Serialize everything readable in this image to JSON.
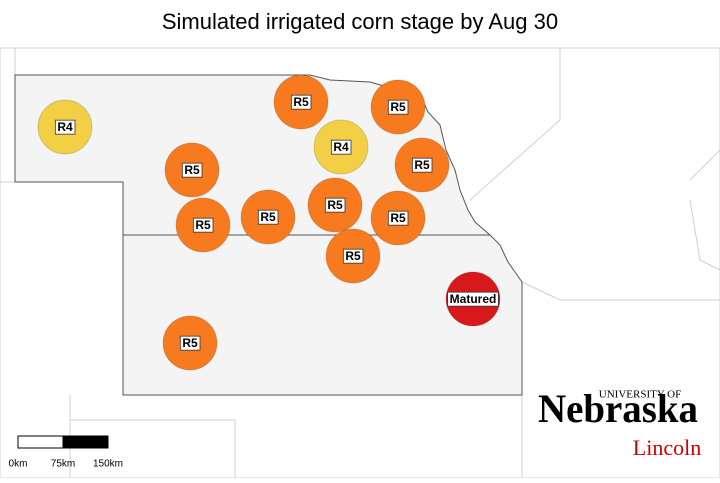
{
  "title": "Simulated irrigated corn stage by Aug 30",
  "markers": [
    {
      "label": "R4",
      "color": "#f2cf45"
    },
    {
      "label": "R5",
      "color": "#f77b1e"
    },
    {
      "label": "R5",
      "color": "#f77b1e"
    },
    {
      "label": "R4",
      "color": "#f2cf45"
    },
    {
      "label": "R5",
      "color": "#f77b1e"
    },
    {
      "label": "R5",
      "color": "#f77b1e"
    },
    {
      "label": "R5",
      "color": "#f77b1e"
    },
    {
      "label": "R5",
      "color": "#f77b1e"
    },
    {
      "label": "R5",
      "color": "#f77b1e"
    },
    {
      "label": "R5",
      "color": "#f77b1e"
    },
    {
      "label": "R5",
      "color": "#f77b1e"
    },
    {
      "label": "Matured",
      "color": "#d7191c"
    },
    {
      "label": "R5",
      "color": "#f77b1e"
    }
  ],
  "scale_bar": {
    "labels": [
      "0km",
      "75km",
      "150km"
    ]
  },
  "logo": {
    "top": "UNIVERSITY OF",
    "name": "Nebraska",
    "campus": "Lincoln"
  }
}
